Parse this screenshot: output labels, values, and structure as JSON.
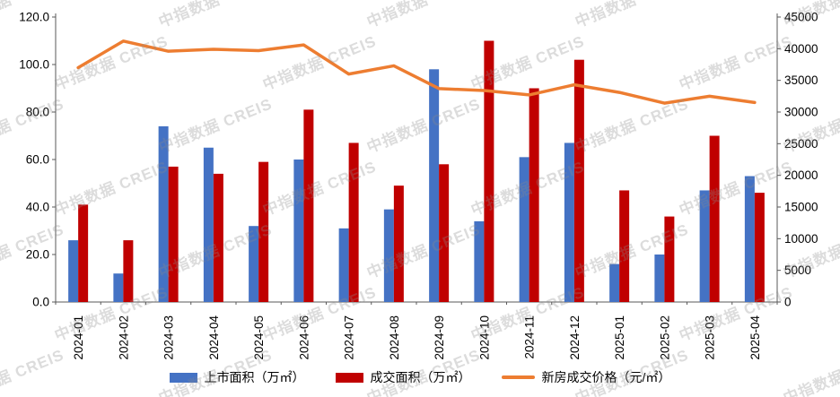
{
  "watermark": {
    "text": "中指数据 CREIS"
  },
  "chart_data": {
    "type": "bar",
    "subtype": "combo-bar-line-dual-axis",
    "title": "",
    "categories": [
      "2024-01",
      "2024-02",
      "2024-03",
      "2024-04",
      "2024-05",
      "2024-06",
      "2024-07",
      "2024-08",
      "2024-09",
      "2024-10",
      "2024-11",
      "2024-12",
      "2025-01",
      "2025-02",
      "2025-03",
      "2025-04"
    ],
    "series": [
      {
        "name": "上市面积（万㎡）",
        "type": "bar",
        "axis": "left",
        "color": "#4472C4",
        "values": [
          26,
          12,
          74,
          65,
          32,
          60,
          31,
          39,
          98,
          34,
          61,
          67,
          16,
          20,
          47,
          53
        ]
      },
      {
        "name": "成交面积（万㎡）",
        "type": "bar",
        "axis": "left",
        "color": "#C00000",
        "values": [
          41,
          26,
          57,
          54,
          59,
          81,
          67,
          49,
          58,
          110,
          90,
          102,
          47,
          36,
          70,
          46
        ]
      },
      {
        "name": "新房成交价格（元/㎡）",
        "type": "line",
        "axis": "right",
        "color": "#ED7D31",
        "values": [
          37000,
          41200,
          39600,
          39900,
          39700,
          40600,
          36000,
          37300,
          33700,
          33400,
          32700,
          34300,
          33100,
          31400,
          32500,
          31500
        ]
      }
    ],
    "left_axis": {
      "min": 0,
      "max": 120,
      "step": 20,
      "tick_labels": [
        "0.0",
        "20.0",
        "40.0",
        "60.0",
        "80.0",
        "100.0",
        "120.0"
      ]
    },
    "right_axis": {
      "min": 0,
      "max": 45000,
      "step": 5000,
      "tick_labels": [
        "0",
        "5000",
        "10000",
        "15000",
        "20000",
        "25000",
        "30000",
        "35000",
        "40000",
        "45000"
      ]
    },
    "grid": false,
    "legend_position": "bottom",
    "axis_color": "#595959",
    "text_color": "#000000"
  }
}
